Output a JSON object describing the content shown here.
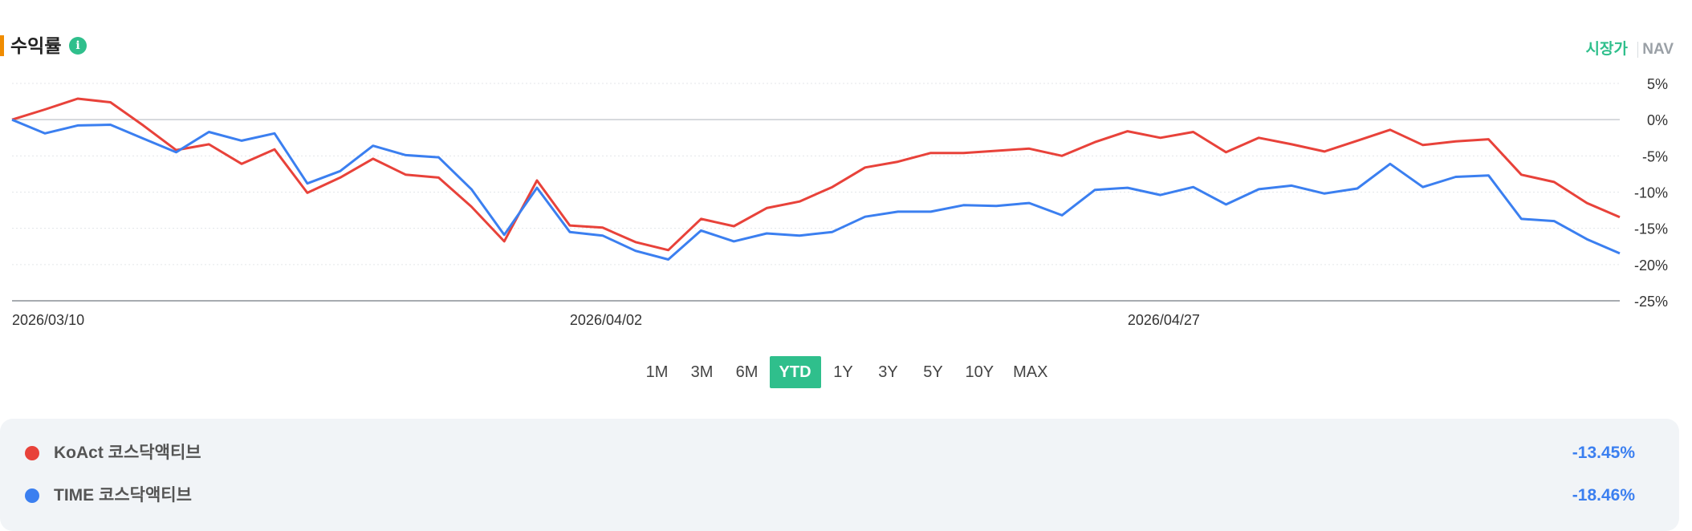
{
  "header": {
    "title": "수익률",
    "info_icon": "info-icon",
    "toggle_market": "시장가",
    "toggle_nav": "NAV"
  },
  "ranges": [
    {
      "label": "1M",
      "active": false
    },
    {
      "label": "3M",
      "active": false
    },
    {
      "label": "6M",
      "active": false
    },
    {
      "label": "YTD",
      "active": true
    },
    {
      "label": "1Y",
      "active": false
    },
    {
      "label": "3Y",
      "active": false
    },
    {
      "label": "5Y",
      "active": false
    },
    {
      "label": "10Y",
      "active": false
    },
    {
      "label": "MAX",
      "active": false
    }
  ],
  "legend": [
    {
      "name": "KoAct 코스닥액티브",
      "value": "-13.45%",
      "color": "#e8423a"
    },
    {
      "name": "TIME 코스닥액티브",
      "value": "-18.46%",
      "color": "#3b7ff0"
    }
  ],
  "colors": {
    "accent": "#2fbf8c",
    "title_bar": "#f08c00",
    "value_text": "#3b7ff0"
  },
  "chart_data": {
    "type": "line",
    "ylim": [
      -25,
      5
    ],
    "yticks": [
      5,
      0,
      -5,
      -10,
      -15,
      -20,
      -25
    ],
    "ytick_labels": [
      "5%",
      "0%",
      "-5%",
      "-10%",
      "-15%",
      "-20%",
      "-25%"
    ],
    "xtick_labels": [
      {
        "index": 0,
        "label": "2026/03/10"
      },
      {
        "index": 17,
        "label": "2026/04/02"
      },
      {
        "index": 34,
        "label": "2026/04/27"
      }
    ],
    "point_count": 50,
    "grid": true,
    "series": [
      {
        "name": "KoAct 코스닥액티브",
        "color": "#e8423a",
        "values": [
          0.0,
          1.4,
          2.9,
          2.4,
          -0.8,
          -4.2,
          -3.4,
          -6.1,
          -4.1,
          -10.1,
          -8.0,
          -5.4,
          -7.6,
          -8.0,
          -12.0,
          -16.8,
          -8.4,
          -14.6,
          -14.9,
          -16.9,
          -18.0,
          -13.7,
          -14.7,
          -12.2,
          -11.3,
          -9.3,
          -6.6,
          -5.8,
          -4.6,
          -4.6,
          -4.3,
          -4.0,
          -5.0,
          -3.1,
          -1.6,
          -2.5,
          -1.7,
          -4.5,
          -2.5,
          -3.4,
          -4.4,
          -2.9,
          -1.4,
          -3.5,
          -3.0,
          -2.7,
          -7.6,
          -8.6,
          -11.5,
          -13.45
        ]
      },
      {
        "name": "TIME 코스닥액티브",
        "color": "#3b7ff0",
        "values": [
          0.0,
          -1.9,
          -0.8,
          -0.7,
          -2.6,
          -4.5,
          -1.7,
          -2.9,
          -1.9,
          -8.8,
          -7.1,
          -3.6,
          -4.9,
          -5.2,
          -9.6,
          -15.9,
          -9.4,
          -15.5,
          -16.0,
          -18.1,
          -19.3,
          -15.3,
          -16.8,
          -15.7,
          -16.0,
          -15.5,
          -13.4,
          -12.7,
          -12.7,
          -11.8,
          -11.9,
          -11.5,
          -13.2,
          -9.7,
          -9.4,
          -10.4,
          -9.3,
          -11.7,
          -9.6,
          -9.1,
          -10.2,
          -9.5,
          -6.1,
          -9.3,
          -7.9,
          -7.7,
          -13.7,
          -14.0,
          -16.5,
          -18.46
        ]
      }
    ]
  }
}
